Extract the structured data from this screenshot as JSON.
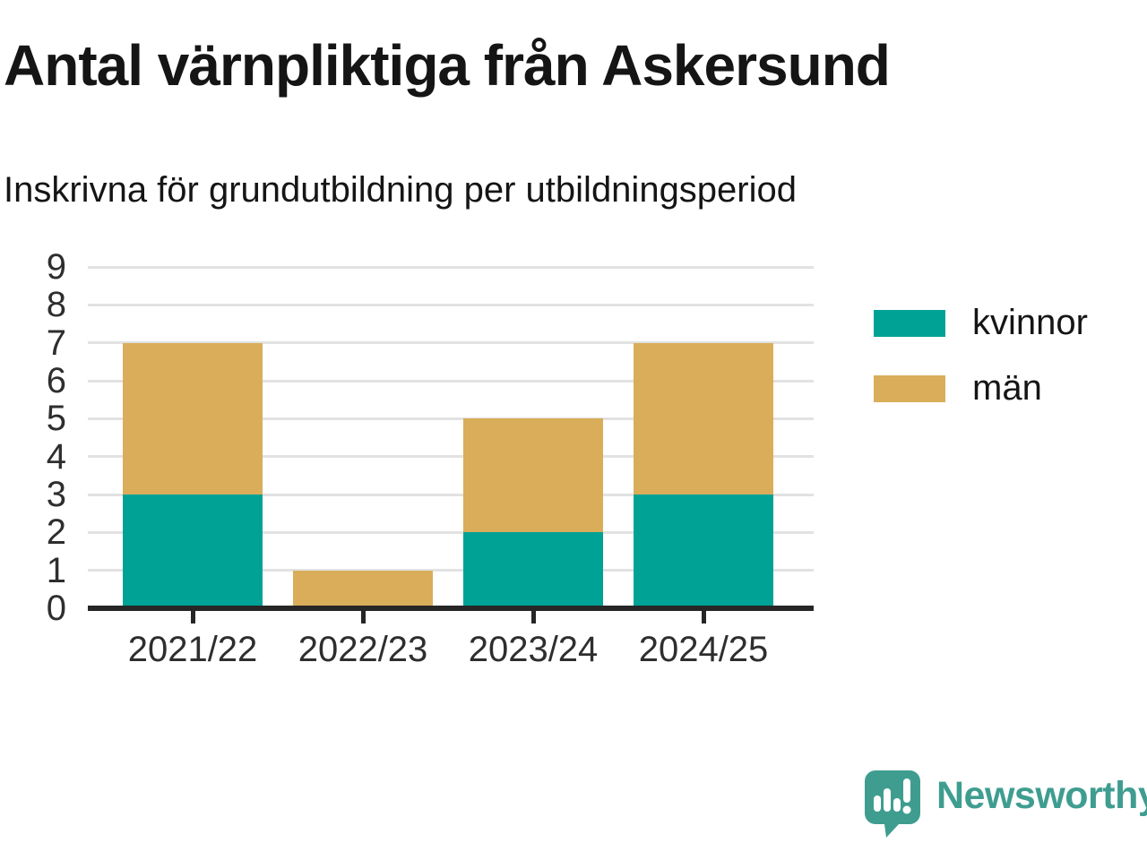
{
  "header": {
    "title": "Antal värnpliktiga från Askersund",
    "subtitle": "Inskrivna för grundutbildning per utbildningsperiod"
  },
  "chart_data": {
    "type": "bar",
    "stacked": true,
    "title": "Antal värnpliktiga från Askersund",
    "subtitle": "Inskrivna för grundutbildning per utbildningsperiod",
    "categories": [
      "2021/22",
      "2022/23",
      "2023/24",
      "2024/25"
    ],
    "series": [
      {
        "name": "kvinnor",
        "color": "#00a296",
        "values": [
          3,
          0,
          2,
          3
        ]
      },
      {
        "name": "män",
        "color": "#d9ad5a",
        "values": [
          4,
          1,
          3,
          4
        ]
      }
    ],
    "stack_totals": [
      7,
      1,
      5,
      7
    ],
    "xlabel": "",
    "ylabel": "",
    "ylim": [
      0,
      9
    ],
    "yticks": [
      0,
      1,
      2,
      3,
      4,
      5,
      6,
      7,
      8,
      9
    ],
    "grid": true,
    "legend_position": "right"
  },
  "colors": {
    "kvinnor": "#00a296",
    "man": "#d9ad5a",
    "axis": "#262626",
    "gridline": "#e2e2e2",
    "brand": "#3f9d90"
  },
  "footer": {
    "brand": "Newsworthy"
  }
}
